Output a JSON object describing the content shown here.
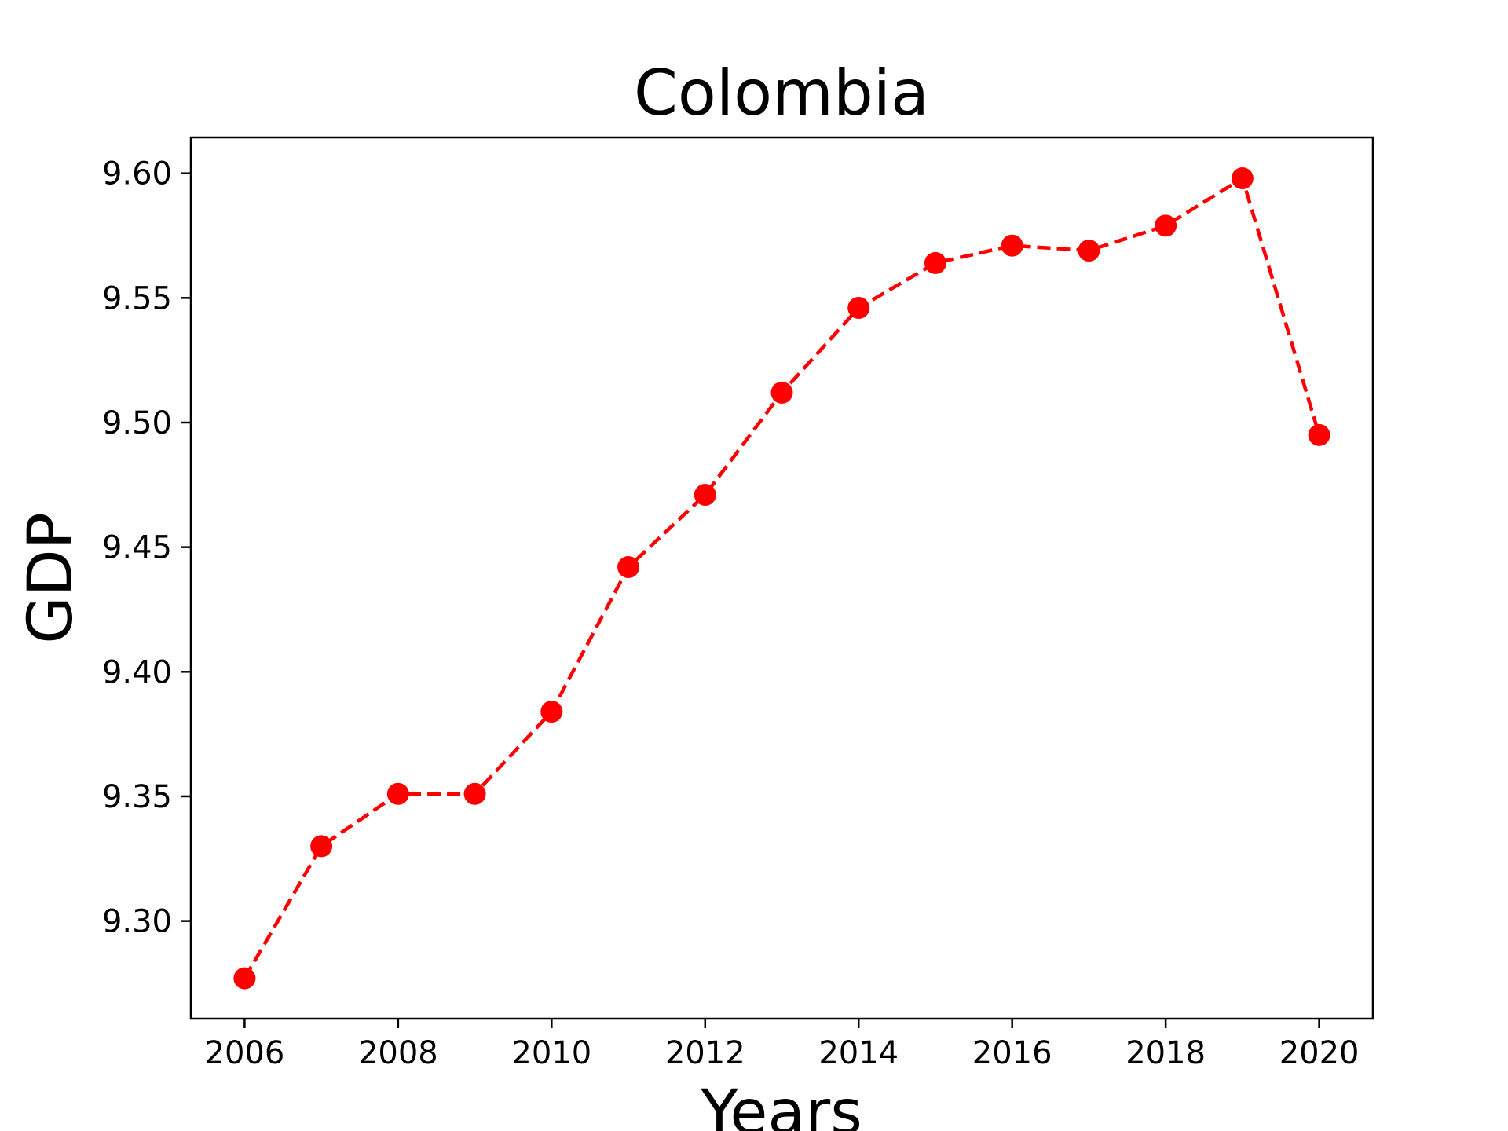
{
  "chart_data": {
    "type": "line",
    "title": "Colombia",
    "xlabel": "Years",
    "ylabel": "GDP",
    "x": [
      2006,
      2007,
      2008,
      2009,
      2010,
      2011,
      2012,
      2013,
      2014,
      2015,
      2016,
      2017,
      2018,
      2019,
      2020
    ],
    "series": [
      {
        "values": [
          9.277,
          9.33,
          9.351,
          9.351,
          9.384,
          9.442,
          9.471,
          9.512,
          9.546,
          9.564,
          9.571,
          9.569,
          9.579,
          9.598,
          9.495
        ],
        "color": "#ff0000",
        "line_style": "dashed",
        "marker": "circle"
      }
    ],
    "xticks": [
      "2006",
      "2008",
      "2010",
      "2012",
      "2014",
      "2016",
      "2018",
      "2020"
    ],
    "yticks": [
      "9.30",
      "9.35",
      "9.40",
      "9.45",
      "9.50",
      "9.55",
      "9.60"
    ],
    "xlim": [
      2005.3,
      2020.7
    ],
    "ylim": [
      9.2608,
      9.6144
    ],
    "grid": false,
    "legend": "none"
  }
}
